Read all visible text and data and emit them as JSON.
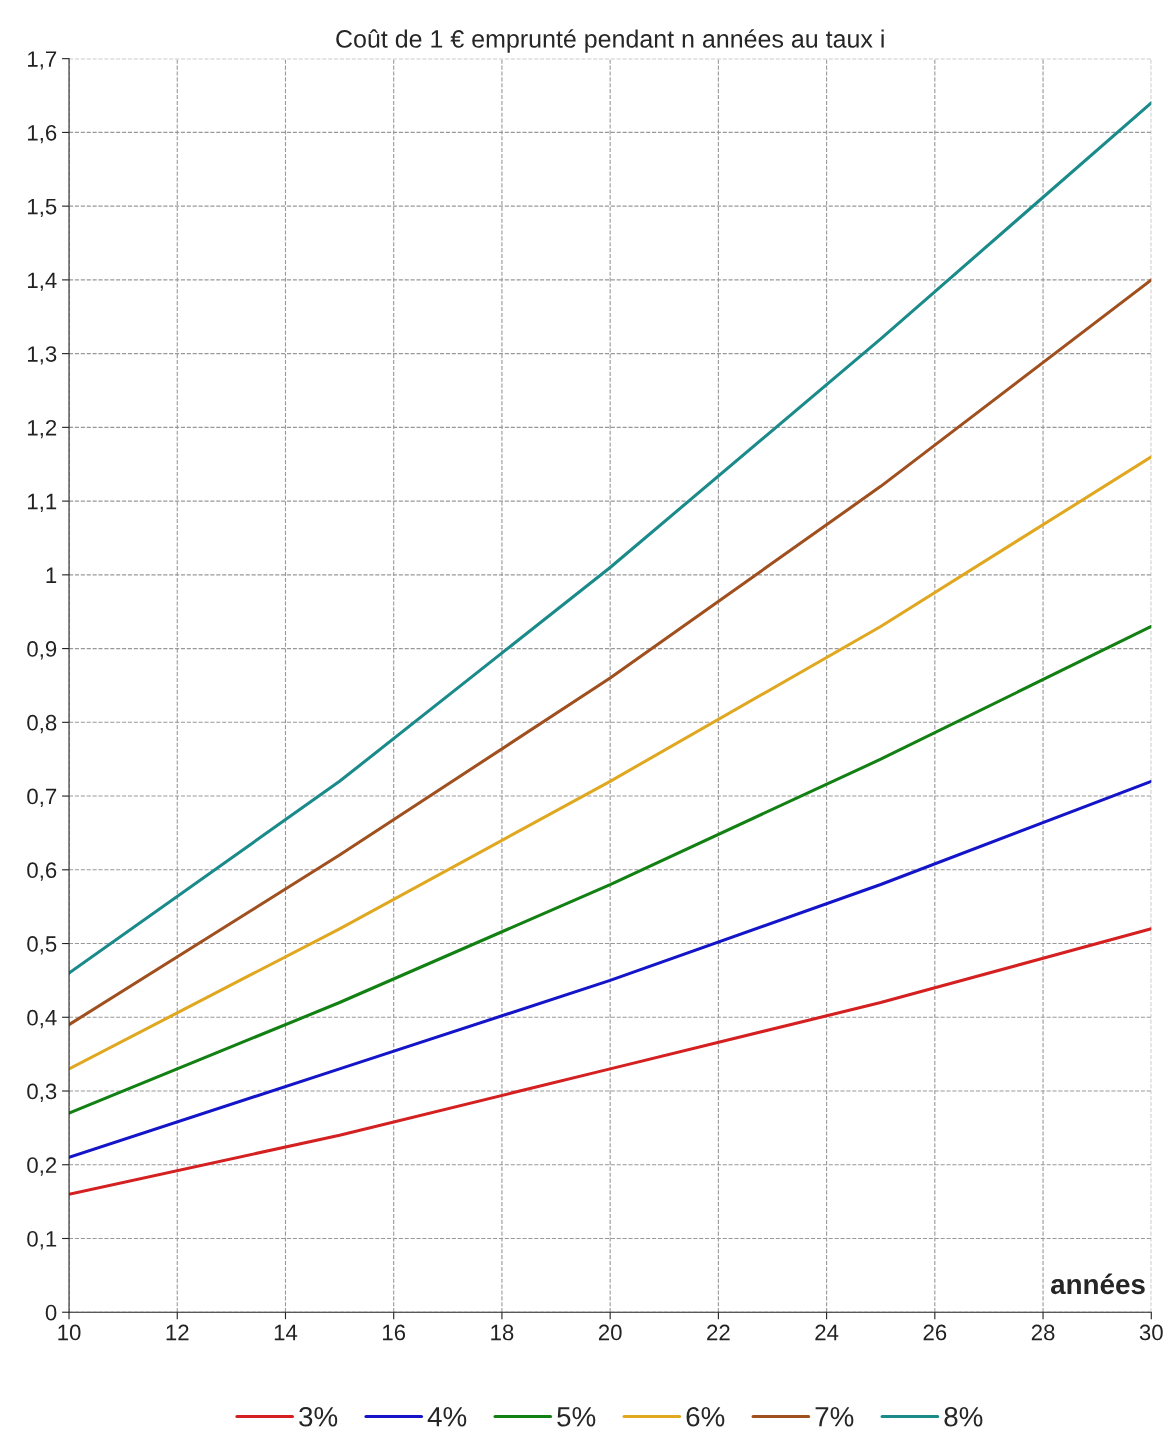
{
  "chart_data": {
    "type": "line",
    "title": "Coût de 1 € emprunté pendant n années au taux i",
    "xlabel": "années",
    "x": [
      10,
      15,
      20,
      25,
      30
    ],
    "series": [
      {
        "name": "3%",
        "color": "#d42020",
        "values": [
          0.16,
          0.24,
          0.33,
          0.42,
          0.52
        ]
      },
      {
        "name": "4%",
        "color": "#1414c8",
        "values": [
          0.21,
          0.33,
          0.45,
          0.58,
          0.72
        ]
      },
      {
        "name": "5%",
        "color": "#128012",
        "values": [
          0.27,
          0.42,
          0.58,
          0.75,
          0.93
        ]
      },
      {
        "name": "6%",
        "color": "#e0a820",
        "values": [
          0.33,
          0.52,
          0.72,
          0.93,
          1.16
        ]
      },
      {
        "name": "7%",
        "color": "#a0501e",
        "values": [
          0.39,
          0.62,
          0.86,
          1.12,
          1.4
        ]
      },
      {
        "name": "8%",
        "color": "#1a8a8a",
        "values": [
          0.46,
          0.72,
          1.01,
          1.32,
          1.64
        ]
      }
    ],
    "xlim": [
      10,
      30
    ],
    "xticks": [
      10,
      12,
      14,
      16,
      18,
      20,
      22,
      24,
      26,
      28,
      30
    ],
    "ylim": [
      0,
      1.7
    ],
    "yticks": [
      0,
      {
        "value": 0.1,
        "label": "0,1"
      },
      {
        "value": 0.2,
        "label": "0,2"
      },
      {
        "value": 0.3,
        "label": "0,3"
      },
      {
        "value": 0.4,
        "label": "0,4"
      },
      {
        "value": 0.5,
        "label": "0,5"
      },
      {
        "value": 0.6,
        "label": "0,6"
      },
      {
        "value": 0.7,
        "label": "0,7"
      },
      {
        "value": 0.8,
        "label": "0,8"
      },
      {
        "value": 0.9,
        "label": "0,9"
      },
      1,
      {
        "value": 1.1,
        "label": "1,1"
      },
      {
        "value": 1.2,
        "label": "1,2"
      },
      {
        "value": 1.3,
        "label": "1,3"
      },
      {
        "value": 1.4,
        "label": "1,4"
      },
      {
        "value": 1.5,
        "label": "1,5"
      },
      {
        "value": 1.6,
        "label": "1,6"
      },
      {
        "value": 1.7,
        "label": "1,7"
      }
    ],
    "grid": true,
    "legend": "bottom",
    "marker": "none",
    "line_style": "solid"
  }
}
